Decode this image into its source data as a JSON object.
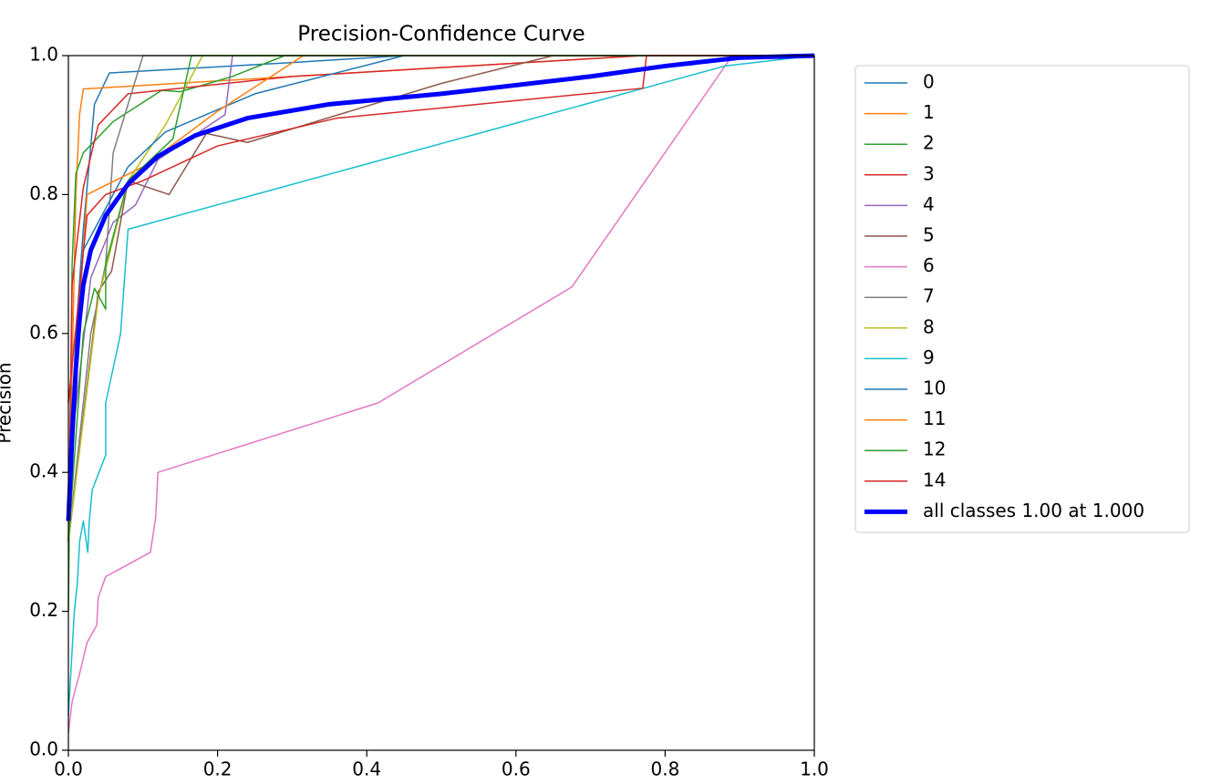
{
  "chart_data": {
    "type": "line",
    "title": "Precision-Confidence Curve",
    "ylabel": "Precision",
    "xlim": [
      0,
      1
    ],
    "ylim": [
      0,
      1
    ],
    "xticks": [
      {
        "value": 0,
        "label": "0.0"
      },
      0.2,
      0.4,
      0.6,
      0.8,
      {
        "value": 1,
        "label": "1.0"
      }
    ],
    "yticks": [
      {
        "value": 0,
        "label": "0.0"
      },
      0.2,
      0.4,
      0.6,
      0.8,
      {
        "value": 1,
        "label": "1.0"
      }
    ],
    "legend": "outside-upper-right",
    "series": [
      {
        "name": "0",
        "color": "#1f77b4",
        "width": 1.5,
        "x": [
          0,
          0.01,
          0.02,
          0.035,
          0.055,
          0.3,
          0.45,
          1
        ],
        "values": [
          0.33,
          0.6,
          0.75,
          0.93,
          0.975,
          0.99,
          1,
          1
        ]
      },
      {
        "name": "1",
        "color": "#ff7f0e",
        "width": 1.5,
        "x": [
          0,
          0.01,
          0.015,
          0.02,
          0.3,
          0.77,
          1
        ],
        "values": [
          0.3,
          0.8,
          0.915,
          0.952,
          0.97,
          1,
          1
        ]
      },
      {
        "name": "2",
        "color": "#2ca02c",
        "width": 1.5,
        "x": [
          0,
          0.005,
          0.01,
          0.02,
          0.06,
          0.125,
          0.15,
          0.22,
          0.29,
          1
        ],
        "values": [
          0.2,
          0.7,
          0.83,
          0.86,
          0.905,
          0.95,
          0.948,
          0.97,
          1,
          1
        ]
      },
      {
        "name": "3",
        "color": "#d62728",
        "width": 1.5,
        "x": [
          0,
          0.005,
          0.02,
          0.04,
          0.08,
          0.3,
          0.77,
          1
        ],
        "values": [
          0.3,
          0.67,
          0.81,
          0.9,
          0.945,
          0.97,
          1,
          1
        ]
      },
      {
        "name": "4",
        "color": "#9467bd",
        "width": 1.5,
        "x": [
          0,
          0.03,
          0.06,
          0.09,
          0.12,
          0.21,
          0.22,
          1
        ],
        "values": [
          0.4,
          0.68,
          0.76,
          0.785,
          0.85,
          0.915,
          1,
          1
        ]
      },
      {
        "name": "5",
        "color": "#8c564b",
        "width": 1.5,
        "x": [
          0,
          0.04,
          0.058,
          0.08,
          0.135,
          0.185,
          0.24,
          0.5,
          0.65,
          1
        ],
        "values": [
          0.3,
          0.66,
          0.69,
          0.82,
          0.8,
          0.888,
          0.875,
          0.96,
          1,
          1
        ]
      },
      {
        "name": "6",
        "color": "#e377c2",
        "width": 1.5,
        "x": [
          0,
          0.005,
          0.015,
          0.025,
          0.038,
          0.04,
          0.05,
          0.11,
          0.117,
          0.12,
          0.415,
          0.675,
          0.89,
          1
        ],
        "values": [
          0.025,
          0.07,
          0.11,
          0.155,
          0.18,
          0.22,
          0.25,
          0.285,
          0.335,
          0.4,
          0.5,
          0.667,
          1,
          1
        ]
      },
      {
        "name": "7",
        "color": "#7f7f7f",
        "width": 1.5,
        "x": [
          0,
          0.03,
          0.05,
          0.06,
          0.1,
          1
        ],
        "values": [
          0.3,
          0.6,
          0.7,
          0.86,
          1,
          1
        ]
      },
      {
        "name": "8",
        "color": "#bcbd22",
        "width": 1.5,
        "x": [
          0,
          0.04,
          0.08,
          0.13,
          0.18,
          1
        ],
        "values": [
          0.3,
          0.65,
          0.82,
          0.9,
          1,
          1
        ]
      },
      {
        "name": "9",
        "color": "#17becf",
        "width": 1.5,
        "x": [
          0,
          0.008,
          0.012,
          0.015,
          0.02,
          0.026,
          0.028,
          0.032,
          0.05,
          0.05,
          0.07,
          0.08,
          0.88,
          1
        ],
        "values": [
          0.05,
          0.2,
          0.24,
          0.3,
          0.33,
          0.285,
          0.33,
          0.375,
          0.425,
          0.5,
          0.6,
          0.75,
          0.985,
          1
        ]
      },
      {
        "name": "10",
        "color": "#1f77b4",
        "width": 1.5,
        "x": [
          0,
          0.02,
          0.04,
          0.08,
          0.13,
          0.25,
          0.45,
          1
        ],
        "values": [
          0.4,
          0.72,
          0.76,
          0.84,
          0.89,
          0.945,
          1,
          1
        ]
      },
      {
        "name": "11",
        "color": "#ff7f0e",
        "width": 1.5,
        "x": [
          0,
          0.025,
          0.1,
          0.2,
          0.315,
          1
        ],
        "values": [
          0.4,
          0.8,
          0.84,
          0.92,
          1,
          1
        ]
      },
      {
        "name": "12",
        "color": "#2ca02c",
        "width": 1.5,
        "x": [
          0,
          0.02,
          0.035,
          0.05,
          0.05,
          0.08,
          0.14,
          0.165,
          1
        ],
        "values": [
          0.3,
          0.6,
          0.665,
          0.635,
          0.7,
          0.82,
          0.88,
          1,
          1
        ]
      },
      {
        "name": "14",
        "color": "#d62728",
        "width": 1.5,
        "x": [
          0,
          0.025,
          0.05,
          0.1,
          0.2,
          0.36,
          0.77,
          0.775,
          1
        ],
        "values": [
          0.5,
          0.77,
          0.8,
          0.82,
          0.87,
          0.91,
          0.953,
          1,
          1
        ]
      },
      {
        "name": "all classes 1.00 at 1.000",
        "color": "#0000ff",
        "width": 5,
        "x": [
          0,
          0.005,
          0.01,
          0.015,
          0.02,
          0.03,
          0.05,
          0.08,
          0.12,
          0.17,
          0.24,
          0.35,
          0.5,
          0.7,
          0.8,
          0.9,
          1
        ],
        "values": [
          0.33,
          0.45,
          0.55,
          0.62,
          0.67,
          0.72,
          0.77,
          0.815,
          0.855,
          0.885,
          0.91,
          0.93,
          0.945,
          0.97,
          0.985,
          0.997,
          1
        ]
      }
    ]
  }
}
